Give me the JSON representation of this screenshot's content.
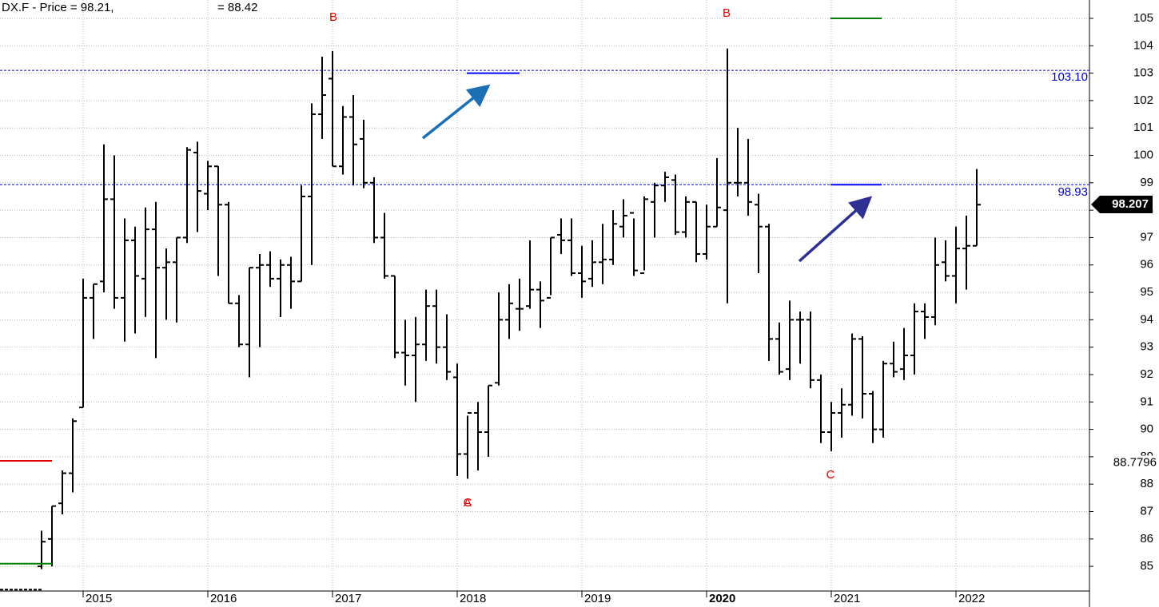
{
  "chart_data": {
    "type": "ohlc",
    "title": "DX.F - Price = 98.21,",
    "subtitle": "= 88.42",
    "categories": [
      null,
      null,
      null,
      null,
      "2015",
      null,
      null,
      null,
      null,
      null,
      null,
      null,
      null,
      null,
      null,
      null,
      "2016",
      null,
      null,
      null,
      null,
      null,
      null,
      null,
      null,
      null,
      null,
      null,
      "2017",
      null,
      null,
      null,
      null,
      null,
      null,
      null,
      null,
      null,
      null,
      null,
      "2018",
      null,
      null,
      null,
      null,
      null,
      null,
      null,
      null,
      null,
      null,
      null,
      "2019",
      null,
      null,
      null,
      null,
      null,
      null,
      null,
      null,
      null,
      null,
      null,
      "2020",
      null,
      null,
      null,
      null,
      null,
      null,
      null,
      null,
      null,
      null,
      null,
      "2021",
      null,
      null,
      null,
      null,
      null,
      null,
      null,
      null,
      null,
      null,
      null,
      "2022",
      null,
      null
    ],
    "open": [
      85.0,
      86.0,
      87.3,
      88.4,
      90.8,
      94.8,
      95.4,
      98.4,
      94.8,
      96.9,
      95.5,
      97.3,
      95.9,
      96.1,
      97.0,
      100.1,
      98.6,
      99.6,
      98.2,
      94.6,
      93.1,
      95.9,
      96.0,
      95.5,
      96.0,
      95.4,
      98.5,
      101.5,
      102.8,
      99.6,
      101.4,
      100.6,
      99.0,
      97.0,
      95.6,
      92.8,
      92.7,
      93.1,
      94.5,
      93.0,
      91.9,
      89.1,
      90.6,
      89.9,
      91.7,
      94.0,
      94.4,
      94.5,
      95.1,
      94.8,
      97.1,
      96.9,
      95.7,
      95.5,
      96.1,
      96.2,
      97.4,
      97.9,
      95.7,
      98.3,
      98.9,
      99.1,
      97.2,
      98.3,
      96.4,
      97.4,
      98.0,
      99.0,
      99.0,
      98.2,
      97.4,
      93.3,
      92.2,
      94.0,
      94.0,
      91.8,
      89.9,
      90.6,
      90.9,
      93.3,
      91.3,
      90.0,
      92.4,
      92.2,
      92.7,
      94.3,
      94.1,
      96.1,
      95.6,
      96.6,
      96.7
    ],
    "high": [
      86.3,
      87.2,
      88.5,
      90.4,
      95.5,
      95.3,
      100.4,
      100.0,
      97.7,
      97.4,
      98.1,
      98.3,
      96.6,
      97.0,
      100.3,
      100.5,
      99.8,
      99.6,
      98.3,
      94.9,
      95.9,
      96.4,
      96.5,
      96.2,
      96.3,
      98.9,
      101.9,
      103.6,
      103.8,
      101.8,
      102.2,
      101.3,
      99.2,
      97.9,
      95.6,
      94.0,
      94.1,
      95.1,
      95.1,
      94.2,
      92.4,
      90.5,
      91.0,
      91.6,
      95.0,
      95.3,
      95.5,
      96.9,
      95.4,
      97.0,
      97.7,
      97.7,
      96.7,
      96.9,
      97.5,
      98.0,
      98.4,
      97.7,
      98.5,
      99.0,
      99.4,
      99.3,
      98.5,
      98.3,
      98.2,
      99.9,
      103.9,
      101.0,
      100.6,
      98.6,
      97.5,
      93.9,
      94.7,
      94.3,
      94.3,
      92.0,
      91.0,
      91.5,
      93.5,
      93.4,
      91.4,
      92.5,
      93.2,
      93.7,
      94.6,
      94.6,
      97.0,
      96.9,
      97.4,
      97.8,
      99.5
    ],
    "low": [
      84.9,
      85.0,
      86.9,
      87.7,
      90.8,
      93.3,
      95.0,
      94.4,
      93.2,
      93.5,
      94.1,
      92.6,
      94.0,
      93.9,
      96.8,
      97.2,
      98.0,
      95.6,
      94.6,
      93.0,
      91.9,
      93.0,
      95.2,
      94.1,
      94.4,
      95.4,
      96.0,
      100.6,
      99.6,
      99.3,
      98.9,
      98.8,
      96.8,
      95.5,
      92.6,
      91.6,
      91.0,
      92.5,
      92.4,
      91.8,
      88.3,
      88.2,
      88.5,
      89.0,
      91.6,
      93.3,
      93.6,
      94.4,
      93.7,
      94.9,
      96.4,
      95.6,
      94.8,
      95.2,
      95.3,
      96.0,
      97.0,
      95.6,
      95.8,
      97.0,
      98.3,
      97.1,
      97.0,
      96.1,
      96.2,
      97.4,
      94.6,
      98.5,
      97.8,
      95.7,
      92.5,
      92.0,
      91.8,
      92.4,
      91.5,
      89.5,
      89.2,
      89.7,
      90.5,
      90.4,
      89.5,
      89.7,
      91.9,
      91.8,
      92.0,
      93.3,
      93.8,
      95.4,
      94.6,
      95.1,
      96.7
    ],
    "close": [
      85.9,
      87.2,
      88.4,
      90.3,
      94.8,
      95.3,
      98.4,
      94.8,
      96.9,
      95.6,
      97.3,
      95.9,
      96.1,
      97.0,
      100.2,
      98.7,
      99.6,
      98.2,
      94.6,
      93.1,
      95.9,
      96.0,
      95.5,
      96.0,
      95.4,
      98.5,
      101.5,
      102.2,
      99.6,
      101.4,
      100.4,
      99.0,
      97.0,
      95.6,
      92.8,
      92.7,
      93.1,
      94.5,
      93.0,
      92.1,
      89.1,
      90.6,
      89.9,
      91.6,
      94.0,
      94.6,
      94.4,
      95.1,
      94.7,
      97.0,
      96.9,
      95.7,
      95.4,
      96.1,
      96.2,
      97.5,
      97.8,
      95.8,
      98.4,
      98.9,
      99.2,
      97.2,
      98.3,
      96.4,
      97.4,
      98.1,
      99.0,
      99.0,
      98.3,
      97.4,
      93.3,
      92.1,
      94.0,
      94.0,
      91.8,
      89.9,
      90.6,
      90.9,
      93.3,
      91.3,
      90.0,
      92.4,
      92.1,
      92.7,
      94.3,
      94.1,
      96.0,
      95.6,
      96.6,
      96.7,
      98.2
    ],
    "color": "#000000",
    "ylim": [
      84.1,
      105.67
    ],
    "yticks": [
      85,
      86,
      87,
      88,
      89,
      90,
      91,
      92,
      93,
      94,
      95,
      96,
      97,
      98,
      99,
      100,
      101,
      102,
      103,
      104,
      105
    ],
    "grid": true,
    "hlines": [
      {
        "value": 103.1,
        "label": "103.10",
        "color": "#0000cc"
      },
      {
        "value": 98.93,
        "color": "#0000cc"
      }
    ],
    "levels": [
      {
        "value": 88.85,
        "color": "#e00000"
      },
      {
        "value": 85.1,
        "color": "#008000"
      },
      {
        "value": 84.15,
        "color": "#000000",
        "dashed": true
      },
      {
        "value": 103.0,
        "color": "#0000ff"
      },
      {
        "value": 105.0,
        "color": "#008000"
      },
      {
        "value": 98.93,
        "color": "#0000ff"
      }
    ],
    "last_price": 98.207,
    "marker_value": 88.7796,
    "annotations": [
      {
        "text": "B",
        "color": "#e00000"
      },
      {
        "text": "B",
        "color": "#e00000"
      },
      {
        "text": "A",
        "color": "#e00000"
      },
      {
        "text": "C",
        "color": "#e00000"
      },
      {
        "text": "C",
        "color": "#e00000"
      }
    ]
  }
}
